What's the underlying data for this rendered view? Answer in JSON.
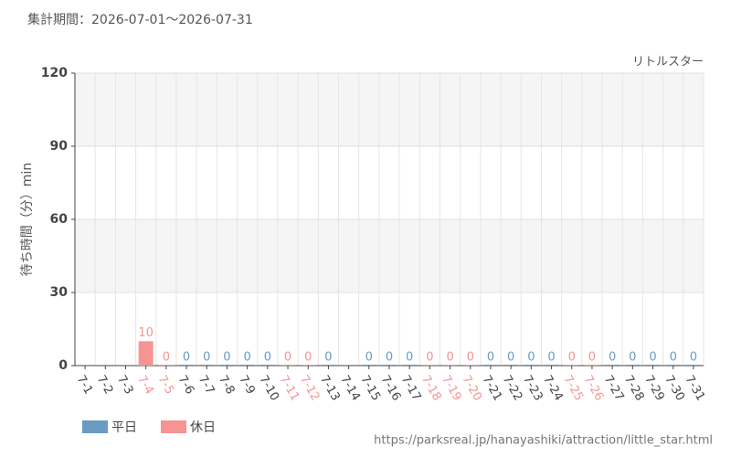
{
  "chart_data": {
    "type": "bar",
    "title": "集計期間：2026-07-01～2026-07-31",
    "subtitle": "リトルスター",
    "y_label": "待ち時間（分）min",
    "source": "https://parksreal.jp/hanayashiki/attraction/little_star.html",
    "categories": [
      "7-1",
      "7-2",
      "7-3",
      "7-4",
      "7-5",
      "7-6",
      "7-7",
      "7-8",
      "7-9",
      "7-10",
      "7-11",
      "7-12",
      "7-13",
      "7-14",
      "7-15",
      "7-16",
      "7-17",
      "7-18",
      "7-19",
      "7-20",
      "7-21",
      "7-22",
      "7-23",
      "7-24",
      "7-25",
      "7-26",
      "7-27",
      "7-28",
      "7-29",
      "7-30",
      "7-31"
    ],
    "series": [
      {
        "name": "平日",
        "color": "#6b9bc3",
        "values": [
          null,
          null,
          null,
          null,
          null,
          0,
          0,
          0,
          0,
          0,
          null,
          null,
          0,
          null,
          0,
          0,
          0,
          null,
          null,
          null,
          0,
          0,
          0,
          0,
          null,
          null,
          0,
          0,
          0,
          0,
          0
        ]
      },
      {
        "name": "休日",
        "color": "#f79393",
        "values": [
          null,
          null,
          null,
          10,
          0,
          null,
          null,
          null,
          null,
          null,
          0,
          0,
          null,
          null,
          null,
          null,
          null,
          0,
          0,
          0,
          null,
          null,
          null,
          null,
          0,
          0,
          null,
          null,
          null,
          null,
          null
        ]
      }
    ],
    "ylim": [
      0,
      120
    ],
    "yticks": [
      0,
      30,
      60,
      90,
      120
    ],
    "grid": true,
    "legend": "bottom-left"
  }
}
